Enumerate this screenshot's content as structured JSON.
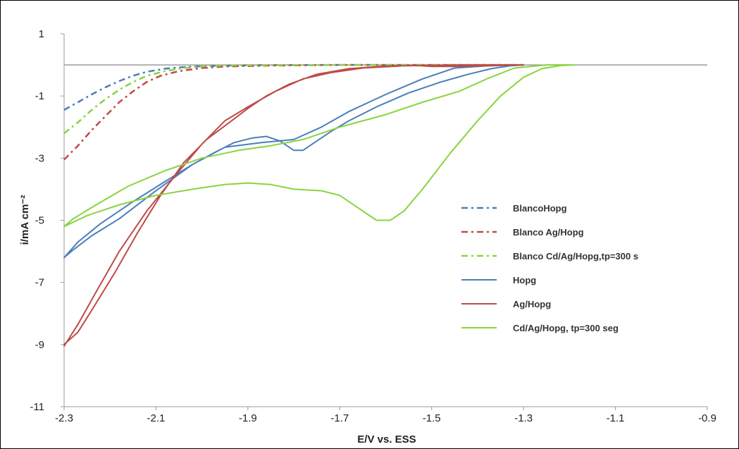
{
  "chart_data": {
    "type": "line",
    "title": "",
    "xlabel": "E/V vs. ESS",
    "ylabel": "i/mA cm⁻²",
    "xlim": [
      -2.3,
      -0.9
    ],
    "ylim": [
      -11,
      1
    ],
    "xticks": [
      -2.3,
      -2.1,
      -1.9,
      -1.7,
      -1.5,
      -1.3,
      -1.1,
      -0.9
    ],
    "xtick_labels": [
      "-2.3",
      "-2.1",
      "-1.9",
      "-1.7",
      "-1.5",
      "-1.3",
      "-1.1",
      "-0.9"
    ],
    "yticks": [
      1,
      -1,
      -3,
      -5,
      -7,
      -9,
      -11
    ],
    "ytick_labels": [
      "1",
      "-1",
      "-3",
      "-5",
      "-7",
      "-9",
      "-11"
    ],
    "grid": false,
    "legend_position": "right",
    "series": [
      {
        "name": "BlancoHopg",
        "color": "#4a7ebb",
        "style": "dashdot",
        "points": [
          [
            -2.3,
            -1.45
          ],
          [
            -2.27,
            -1.2
          ],
          [
            -2.24,
            -0.95
          ],
          [
            -2.21,
            -0.72
          ],
          [
            -2.18,
            -0.52
          ],
          [
            -2.15,
            -0.35
          ],
          [
            -2.12,
            -0.22
          ],
          [
            -2.08,
            -0.12
          ],
          [
            -2.03,
            -0.06
          ],
          [
            -1.97,
            -0.03
          ],
          [
            -1.9,
            -0.01
          ],
          [
            -1.7,
            0
          ],
          [
            -1.5,
            0
          ],
          [
            -1.3,
            0
          ]
        ]
      },
      {
        "name": "Blanco Ag/Hopg",
        "color": "#be4b48",
        "style": "dashdot",
        "points": [
          [
            -2.3,
            -3.05
          ],
          [
            -2.27,
            -2.6
          ],
          [
            -2.24,
            -2.1
          ],
          [
            -2.21,
            -1.65
          ],
          [
            -2.18,
            -1.2
          ],
          [
            -2.15,
            -0.85
          ],
          [
            -2.12,
            -0.55
          ],
          [
            -2.09,
            -0.35
          ],
          [
            -2.05,
            -0.2
          ],
          [
            -2.0,
            -0.1
          ],
          [
            -1.95,
            -0.05
          ],
          [
            -1.85,
            -0.02
          ],
          [
            -1.7,
            0
          ],
          [
            -1.55,
            0
          ],
          [
            -1.3,
            0
          ]
        ]
      },
      {
        "name": "Blanco Cd/Ag/Hopg,tp=300 s",
        "color": "#8ad33f",
        "style": "dashdot",
        "points": [
          [
            -2.3,
            -2.2
          ],
          [
            -2.27,
            -1.85
          ],
          [
            -2.24,
            -1.45
          ],
          [
            -2.21,
            -1.1
          ],
          [
            -2.18,
            -0.8
          ],
          [
            -2.15,
            -0.55
          ],
          [
            -2.12,
            -0.35
          ],
          [
            -2.08,
            -0.2
          ],
          [
            -2.04,
            -0.1
          ],
          [
            -1.99,
            -0.04
          ],
          [
            -1.93,
            -0.01
          ],
          [
            -1.8,
            0
          ],
          [
            -1.6,
            0
          ],
          [
            -1.3,
            0
          ]
        ]
      },
      {
        "name": "Hopg",
        "color": "#4a7ebb",
        "style": "solid",
        "points": [
          [
            -2.3,
            -6.2
          ],
          [
            -2.27,
            -5.7
          ],
          [
            -2.22,
            -5.1
          ],
          [
            -2.15,
            -4.4
          ],
          [
            -2.08,
            -3.75
          ],
          [
            -2.02,
            -3.2
          ],
          [
            -1.97,
            -2.8
          ],
          [
            -1.93,
            -2.5
          ],
          [
            -1.89,
            -2.35
          ],
          [
            -1.86,
            -2.3
          ],
          [
            -1.83,
            -2.45
          ],
          [
            -1.8,
            -2.75
          ],
          [
            -1.78,
            -2.75
          ],
          [
            -1.75,
            -2.45
          ],
          [
            -1.72,
            -2.15
          ],
          [
            -1.68,
            -1.8
          ],
          [
            -1.62,
            -1.35
          ],
          [
            -1.55,
            -0.9
          ],
          [
            -1.48,
            -0.55
          ],
          [
            -1.42,
            -0.3
          ],
          [
            -1.37,
            -0.12
          ],
          [
            -1.33,
            -0.03
          ],
          [
            -1.3,
            0
          ],
          [
            -1.35,
            0
          ],
          [
            -1.45,
            -0.1
          ],
          [
            -1.52,
            -0.45
          ],
          [
            -1.6,
            -0.95
          ],
          [
            -1.68,
            -1.5
          ],
          [
            -1.74,
            -2.0
          ],
          [
            -1.8,
            -2.4
          ],
          [
            -1.87,
            -2.5
          ],
          [
            -1.95,
            -2.65
          ],
          [
            -2.02,
            -3.2
          ],
          [
            -2.1,
            -4.05
          ],
          [
            -2.18,
            -4.95
          ],
          [
            -2.24,
            -5.5
          ],
          [
            -2.28,
            -5.95
          ],
          [
            -2.3,
            -6.2
          ]
        ]
      },
      {
        "name": "Ag/Hopg",
        "color": "#be4b48",
        "style": "solid",
        "points": [
          [
            -2.3,
            -9.0
          ],
          [
            -2.27,
            -8.6
          ],
          [
            -2.24,
            -7.9
          ],
          [
            -2.19,
            -6.7
          ],
          [
            -2.14,
            -5.4
          ],
          [
            -2.09,
            -4.2
          ],
          [
            -2.04,
            -3.15
          ],
          [
            -1.99,
            -2.4
          ],
          [
            -1.94,
            -1.85
          ],
          [
            -1.9,
            -1.4
          ],
          [
            -1.86,
            -1.0
          ],
          [
            -1.81,
            -0.62
          ],
          [
            -1.75,
            -0.3
          ],
          [
            -1.68,
            -0.12
          ],
          [
            -1.6,
            -0.04
          ],
          [
            -1.53,
            -0.02
          ],
          [
            -1.5,
            -0.05
          ],
          [
            -1.45,
            -0.05
          ],
          [
            -1.38,
            -0.03
          ],
          [
            -1.3,
            0
          ],
          [
            -1.42,
            0
          ],
          [
            -1.55,
            -0.02
          ],
          [
            -1.65,
            -0.1
          ],
          [
            -1.72,
            -0.25
          ],
          [
            -1.78,
            -0.45
          ],
          [
            -1.84,
            -0.85
          ],
          [
            -1.9,
            -1.35
          ],
          [
            -1.95,
            -1.8
          ],
          [
            -2.0,
            -2.55
          ],
          [
            -2.06,
            -3.6
          ],
          [
            -2.12,
            -4.7
          ],
          [
            -2.18,
            -6.0
          ],
          [
            -2.23,
            -7.3
          ],
          [
            -2.27,
            -8.35
          ],
          [
            -2.3,
            -9.05
          ]
        ]
      },
      {
        "name": "Cd/Ag/Hopg, tp=300 seg",
        "color": "#8ad33f",
        "style": "solid",
        "points": [
          [
            -2.3,
            -5.2
          ],
          [
            -2.25,
            -4.85
          ],
          [
            -2.18,
            -4.5
          ],
          [
            -2.1,
            -4.2
          ],
          [
            -2.02,
            -4.0
          ],
          [
            -1.95,
            -3.85
          ],
          [
            -1.9,
            -3.8
          ],
          [
            -1.85,
            -3.85
          ],
          [
            -1.8,
            -4.0
          ],
          [
            -1.74,
            -4.05
          ],
          [
            -1.7,
            -4.2
          ],
          [
            -1.66,
            -4.6
          ],
          [
            -1.62,
            -5.0
          ],
          [
            -1.59,
            -5.0
          ],
          [
            -1.56,
            -4.7
          ],
          [
            -1.52,
            -4.0
          ],
          [
            -1.46,
            -2.85
          ],
          [
            -1.4,
            -1.8
          ],
          [
            -1.35,
            -1.0
          ],
          [
            -1.3,
            -0.4
          ],
          [
            -1.26,
            -0.12
          ],
          [
            -1.22,
            -0.02
          ],
          [
            -1.19,
            0
          ],
          [
            -1.25,
            0
          ],
          [
            -1.32,
            -0.1
          ],
          [
            -1.38,
            -0.45
          ],
          [
            -1.44,
            -0.85
          ],
          [
            -1.52,
            -1.2
          ],
          [
            -1.6,
            -1.6
          ],
          [
            -1.7,
            -2.0
          ],
          [
            -1.78,
            -2.4
          ],
          [
            -1.85,
            -2.6
          ],
          [
            -1.92,
            -2.75
          ],
          [
            -2.0,
            -3.0
          ],
          [
            -2.08,
            -3.4
          ],
          [
            -2.16,
            -3.9
          ],
          [
            -2.23,
            -4.5
          ],
          [
            -2.28,
            -4.95
          ],
          [
            -2.3,
            -5.2
          ]
        ]
      }
    ],
    "reference_line": {
      "y": 0,
      "color": "#9a9a9a"
    },
    "legend": [
      {
        "label": "BlancoHopg",
        "color": "#4a7ebb",
        "style": "dashdot"
      },
      {
        "label": "Blanco Ag/Hopg",
        "color": "#be4b48",
        "style": "dashdot"
      },
      {
        "label": "Blanco Cd/Ag/Hopg,tp=300 s",
        "color": "#8ad33f",
        "style": "dashdot"
      },
      {
        "label": "Hopg",
        "color": "#4a7ebb",
        "style": "solid"
      },
      {
        "label": "Ag/Hopg",
        "color": "#be4b48",
        "style": "solid"
      },
      {
        "label": "Cd/Ag/Hopg, tp=300 seg",
        "color": "#8ad33f",
        "style": "solid"
      }
    ]
  }
}
